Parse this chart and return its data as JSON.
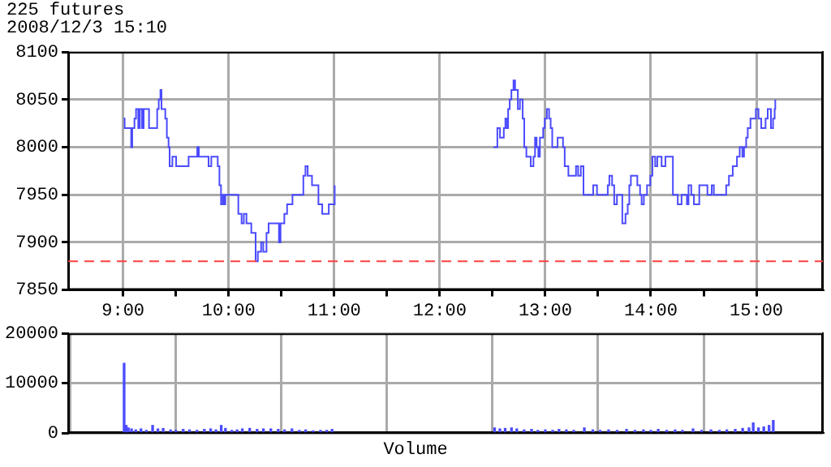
{
  "chart_data": [
    {
      "type": "step",
      "title": "225 futures",
      "subtitle": "2008/12/3 15:10",
      "grid": true,
      "legend": false,
      "marker": "none",
      "line_style": "solid",
      "xlim": [
        8.48,
        15.63
      ],
      "ylim": [
        7850,
        8100
      ],
      "yticks": [
        7850,
        7900,
        7950,
        8000,
        8050,
        8100
      ],
      "xticks": [
        {
          "value": 9,
          "label": "9:00"
        },
        {
          "value": 9.5,
          "label": null
        },
        {
          "value": 10,
          "label": "10:00"
        },
        {
          "value": 10.5,
          "label": null
        },
        {
          "value": 11,
          "label": "11:00"
        },
        {
          "value": 11.5,
          "label": null
        },
        {
          "value": 12,
          "label": "12:00"
        },
        {
          "value": 12.5,
          "label": null
        },
        {
          "value": 13,
          "label": "13:00"
        },
        {
          "value": 13.5,
          "label": null
        },
        {
          "value": 14,
          "label": "14:00"
        },
        {
          "value": 14.5,
          "label": null
        },
        {
          "value": 15,
          "label": "15:00"
        }
      ],
      "ref_lines": [
        {
          "axis": "y",
          "value": 7880,
          "color": "#ff4040",
          "line_style": "dashed"
        }
      ],
      "series": [
        {
          "color": "#4b4bff",
          "x": [
            9.005,
            9.015,
            9.077,
            9.087,
            9.108,
            9.123,
            9.144,
            9.159,
            9.18,
            9.195,
            9.246,
            9.323,
            9.338,
            9.354,
            9.364,
            9.4,
            9.415,
            9.431,
            9.441,
            9.467,
            9.503,
            9.621,
            9.703,
            9.718,
            9.81,
            9.836,
            9.897,
            9.913,
            9.928,
            9.944,
            9.954,
            9.969,
            10.092,
            10.123,
            10.144,
            10.169,
            10.215,
            10.256,
            10.277,
            10.308,
            10.328,
            10.359,
            10.379,
            10.477,
            10.492,
            10.528,
            10.554,
            10.605,
            10.708,
            10.728,
            10.749,
            10.79,
            10.851,
            10.887,
            10.949,
            11.005,
            11.5,
            12.51,
            12.546,
            12.571,
            12.607,
            12.622,
            12.638,
            12.648,
            12.663,
            12.679,
            12.699,
            12.714,
            12.74,
            12.76,
            12.786,
            12.801,
            12.821,
            12.862,
            12.888,
            12.903,
            12.918,
            12.934,
            12.949,
            12.98,
            12.995,
            13.015,
            13.036,
            13.051,
            13.066,
            13.117,
            13.168,
            13.184,
            13.219,
            13.291,
            13.311,
            13.337,
            13.362,
            13.454,
            13.49,
            13.592,
            13.607,
            13.633,
            13.653,
            13.679,
            13.73,
            13.76,
            13.781,
            13.796,
            13.811,
            13.872,
            13.898,
            13.913,
            13.934,
            13.964,
            13.995,
            14.015,
            14.041,
            14.061,
            14.102,
            14.138,
            14.209,
            14.255,
            14.291,
            14.342,
            14.357,
            14.383,
            14.408,
            14.459,
            14.536,
            14.577,
            14.597,
            14.714,
            14.74,
            14.776,
            14.816,
            14.842,
            14.867,
            14.883,
            14.903,
            14.918,
            14.944,
            14.995,
            15.02,
            15.046,
            15.087,
            15.107,
            15.138,
            15.158,
            15.173,
            15.179
          ],
          "values": [
            8030,
            8020,
            8000,
            8020,
            8030,
            8040,
            8020,
            8040,
            8020,
            8040,
            8020,
            8040,
            8050,
            8060,
            8040,
            8030,
            8010,
            8000,
            7980,
            7990,
            7980,
            7990,
            8000,
            7990,
            7980,
            7990,
            7980,
            7960,
            7940,
            7950,
            7940,
            7950,
            7930,
            7920,
            7930,
            7920,
            7910,
            7880,
            7890,
            7900,
            7890,
            7910,
            7920,
            7900,
            7920,
            7930,
            7940,
            7950,
            7970,
            7980,
            7970,
            7960,
            7940,
            7930,
            7940,
            7960,
            null,
            8000,
            8020,
            8010,
            8020,
            8030,
            8020,
            8040,
            8050,
            8060,
            8070,
            8060,
            8040,
            8050,
            8030,
            8000,
            7990,
            7980,
            7990,
            8010,
            8000,
            7990,
            8010,
            8020,
            8030,
            8040,
            8030,
            8020,
            8000,
            8010,
            8000,
            7980,
            7970,
            7980,
            7970,
            7980,
            7950,
            7960,
            7950,
            7960,
            7970,
            7960,
            7940,
            7950,
            7920,
            7930,
            7940,
            7960,
            7970,
            7960,
            7950,
            7940,
            7950,
            7960,
            7970,
            7990,
            7980,
            7990,
            7980,
            7990,
            7950,
            7940,
            7950,
            7940,
            7960,
            7950,
            7940,
            7960,
            7950,
            7960,
            7950,
            7960,
            7970,
            7980,
            7990,
            8000,
            7990,
            8000,
            8010,
            8020,
            8030,
            8040,
            8030,
            8020,
            8030,
            8040,
            8020,
            8030,
            8040,
            8050
          ]
        }
      ]
    },
    {
      "type": "bar",
      "xlabel": "Volume",
      "grid": true,
      "legend": false,
      "tick_labels": "y",
      "xlim": [
        8.48,
        15.63
      ],
      "xticks": [
        9,
        10,
        11,
        12,
        13,
        14,
        15
      ],
      "ylim": [
        0,
        20000
      ],
      "yticks": [
        0,
        10000,
        20000
      ],
      "series": [
        {
          "color": "#4b4bff",
          "x": [
            9.01,
            9.03,
            9.05,
            9.08,
            9.12,
            9.17,
            9.22,
            9.28,
            9.33,
            9.38,
            9.45,
            9.5,
            9.57,
            9.63,
            9.7,
            9.77,
            9.83,
            9.88,
            9.93,
            9.97,
            10.03,
            10.08,
            10.13,
            10.2,
            10.27,
            10.33,
            10.4,
            10.47,
            10.53,
            10.6,
            10.67,
            10.73,
            10.8,
            10.87,
            10.93,
            10.98,
            12.52,
            12.57,
            12.62,
            12.68,
            12.73,
            12.8,
            12.87,
            12.93,
            13.0,
            13.07,
            13.13,
            13.2,
            13.27,
            13.37,
            13.45,
            13.52,
            13.6,
            13.68,
            13.77,
            13.85,
            13.93,
            14.0,
            14.07,
            14.15,
            14.23,
            14.3,
            14.4,
            14.48,
            14.57,
            14.65,
            14.72,
            14.8,
            14.87,
            14.93,
            14.97,
            15.02,
            15.07,
            15.12,
            15.16
          ],
          "values": [
            14000,
            1500,
            1000,
            800,
            600,
            800,
            500,
            1500,
            800,
            900,
            600,
            500,
            700,
            600,
            500,
            700,
            800,
            600,
            1500,
            900,
            500,
            600,
            800,
            900,
            700,
            800,
            800,
            700,
            600,
            800,
            500,
            600,
            400,
            500,
            500,
            700,
            1000,
            800,
            900,
            1000,
            800,
            600,
            700,
            500,
            600,
            500,
            700,
            600,
            500,
            1000,
            600,
            500,
            600,
            500,
            700,
            500,
            600,
            500,
            700,
            500,
            600,
            500,
            800,
            500,
            600,
            500,
            600,
            700,
            900,
            1000,
            2000,
            1000,
            1200,
            1500,
            2500
          ]
        }
      ]
    }
  ]
}
